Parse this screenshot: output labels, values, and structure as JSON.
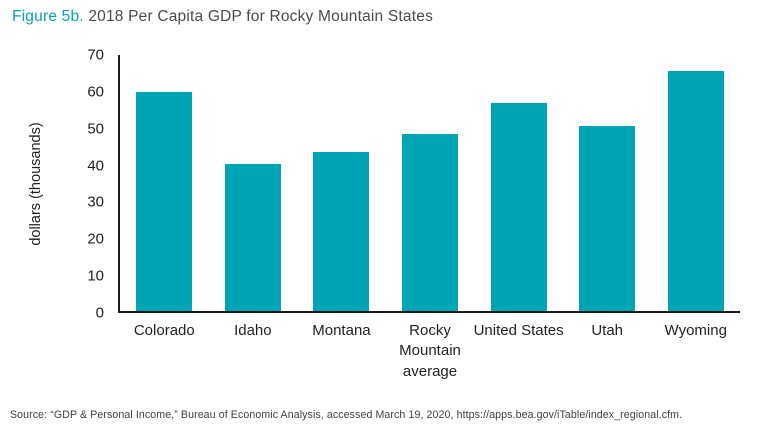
{
  "figure": {
    "label": "Figure 5b.",
    "title": "2018 Per Capita GDP for Rocky Mountain States"
  },
  "chart_data": {
    "type": "bar",
    "categories": [
      "Colorado",
      "Idaho",
      "Montana",
      "Rocky Mountain average",
      "United States",
      "Utah",
      "Wyoming"
    ],
    "values": [
      59.8,
      40.2,
      43.5,
      48.3,
      56.9,
      50.5,
      65.7
    ],
    "title": "2018 Per Capita GDP for Rocky Mountain States",
    "xlabel": "",
    "ylabel": "dollars (thousands)",
    "ylim": [
      0,
      70
    ],
    "yticks": [
      0,
      10,
      20,
      30,
      40,
      50,
      60,
      70
    ],
    "bar_color": "#00A5B5",
    "grid": false,
    "legend": "none"
  },
  "source": "Source: “GDP & Personal Income,” Bureau of Economic Analysis, accessed March 19, 2020, https://apps.bea.gov/iTable/index_regional.cfm."
}
